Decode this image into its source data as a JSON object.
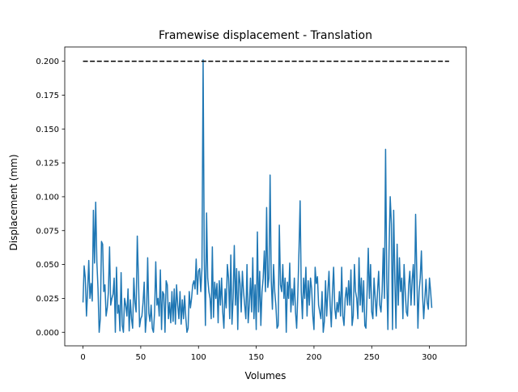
{
  "chart_data": {
    "type": "line",
    "title": "Framewise displacement - Translation",
    "xlabel": "Volumes",
    "ylabel": "Displacement (mm)",
    "xlim": [
      -15.8,
      331.8
    ],
    "ylim": [
      -0.01,
      0.2105
    ],
    "xticks": [
      0,
      50,
      100,
      150,
      200,
      250,
      300
    ],
    "yticks": [
      0.0,
      0.025,
      0.05,
      0.075,
      0.1,
      0.125,
      0.15,
      0.175,
      0.2
    ],
    "ytick_labels": [
      "0.000",
      "0.025",
      "0.050",
      "0.075",
      "0.100",
      "0.125",
      "0.150",
      "0.175",
      "0.200"
    ],
    "grid": false,
    "series": [
      {
        "color": "#1f77b4",
        "x_start": 0,
        "values": [
          0.022,
          0.049,
          0.04,
          0.012,
          0.03,
          0.053,
          0.025,
          0.036,
          0.023,
          0.09,
          0.051,
          0.096,
          0.052,
          0.032,
          0.0,
          0.01,
          0.067,
          0.065,
          0.03,
          0.035,
          0.012,
          0.018,
          0.03,
          0.063,
          0.02,
          0.025,
          0.028,
          0.04,
          0.0,
          0.048,
          0.014,
          0.02,
          0.001,
          0.044,
          0.005,
          0.0,
          0.025,
          0.02,
          0.012,
          0.032,
          0.001,
          0.024,
          0.01,
          0.003,
          0.04,
          0.022,
          0.015,
          0.071,
          0.04,
          0.004,
          0.01,
          0.012,
          0.022,
          0.037,
          0.0,
          0.012,
          0.055,
          0.014,
          0.008,
          0.02,
          0.003,
          0.0,
          0.015,
          0.052,
          0.02,
          0.025,
          0.012,
          0.046,
          0.002,
          0.03,
          0.028,
          0.0,
          0.038,
          0.035,
          0.01,
          0.022,
          0.007,
          0.03,
          0.008,
          0.032,
          0.006,
          0.035,
          0.02,
          0.01,
          0.03,
          0.006,
          0.024,
          0.01,
          0.027,
          0.011,
          0.0,
          0.003,
          0.03,
          0.018,
          0.025,
          0.035,
          0.038,
          0.032,
          0.054,
          0.028,
          0.045,
          0.047,
          0.03,
          0.047,
          0.201,
          0.055,
          0.005,
          0.088,
          0.04,
          0.03,
          0.025,
          0.01,
          0.063,
          0.011,
          0.037,
          0.025,
          0.036,
          0.007,
          0.038,
          0.02,
          0.04,
          0.015,
          0.003,
          0.032,
          0.018,
          0.05,
          0.04,
          0.01,
          0.057,
          0.006,
          0.025,
          0.064,
          0.02,
          0.047,
          0.002,
          0.045,
          0.036,
          0.015,
          0.045,
          0.03,
          0.02,
          0.01,
          0.05,
          0.007,
          0.02,
          0.04,
          0.015,
          0.055,
          0.01,
          0.035,
          0.002,
          0.074,
          0.015,
          0.045,
          0.005,
          0.03,
          0.04,
          0.06,
          0.03,
          0.092,
          0.033,
          0.04,
          0.116,
          0.038,
          0.017,
          0.05,
          0.03,
          0.02,
          0.003,
          0.005,
          0.079,
          0.035,
          0.03,
          0.05,
          0.025,
          0.04,
          0.0,
          0.037,
          0.025,
          0.051,
          0.015,
          0.032,
          0.02,
          0.04,
          0.015,
          0.003,
          0.028,
          0.06,
          0.097,
          0.03,
          0.01,
          0.04,
          0.025,
          0.048,
          0.012,
          0.038,
          0.02,
          0.04,
          0.032,
          0.012,
          0.002,
          0.048,
          0.036,
          0.041,
          0.02,
          0.015,
          0.01,
          0.03,
          0.0,
          0.008,
          0.038,
          0.012,
          0.03,
          0.045,
          0.02,
          0.004,
          0.03,
          0.048,
          0.018,
          0.01,
          0.022,
          0.015,
          0.03,
          0.012,
          0.048,
          0.012,
          0.005,
          0.025,
          0.033,
          0.02,
          0.038,
          0.02,
          0.046,
          0.005,
          0.012,
          0.05,
          0.03,
          0.025,
          0.01,
          0.055,
          0.02,
          0.04,
          0.015,
          0.038,
          0.005,
          0.003,
          0.03,
          0.062,
          0.025,
          0.05,
          0.015,
          0.01,
          0.04,
          0.025,
          0.012,
          0.03,
          0.045,
          0.02,
          0.015,
          0.03,
          0.062,
          0.025,
          0.135,
          0.04,
          0.002,
          0.06,
          0.1,
          0.08,
          0.002,
          0.09,
          0.04,
          0.003,
          0.065,
          0.02,
          0.055,
          0.03,
          0.04,
          0.01,
          0.05,
          0.03,
          0.015,
          0.012,
          0.035,
          0.045,
          0.02,
          0.038,
          0.05,
          0.02,
          0.087,
          0.045,
          0.003,
          0.03,
          0.04,
          0.06,
          0.028,
          0.01,
          0.025,
          0.039,
          0.022,
          0.017,
          0.04,
          0.03,
          0.018
        ]
      },
      {
        "color": "#000000",
        "style": "dashed",
        "x": [
          0,
          317
        ],
        "values": [
          0.2,
          0.2
        ]
      }
    ]
  }
}
